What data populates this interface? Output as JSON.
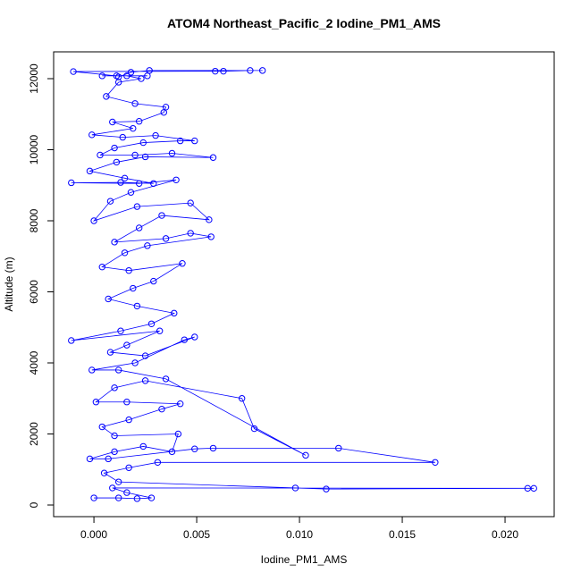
{
  "chart_data": {
    "type": "line",
    "title": "ATOM4 Northeast_Pacific_2 Iodine_PM1_AMS",
    "x_label": "Iodine_PM1_AMS",
    "y_label": "Altitude (m)",
    "color": "#0000ff",
    "markers": "open-circle",
    "xlim": [
      -0.00196,
      0.02239
    ],
    "ylim": [
      -327,
      12755
    ],
    "xticks": [
      {
        "value": 0,
        "label": "0.000"
      },
      {
        "value": 0.005,
        "label": "0.005"
      },
      {
        "value": 0.01,
        "label": "0.010"
      },
      {
        "value": 0.015,
        "label": "0.015"
      },
      {
        "value": 0.02,
        "label": "0.020"
      }
    ],
    "yticks": [
      0,
      2000,
      4000,
      6000,
      8000,
      10000,
      12000
    ],
    "x": [
      0.0,
      0.0012,
      0.0021,
      0.0028,
      0.0016,
      0.0009,
      0.0214,
      0.0211,
      0.0113,
      0.0098,
      0.0012,
      0.0005,
      0.0017,
      0.0031,
      0.0166,
      0.0119,
      0.0058,
      0.0049,
      0.0007,
      -0.0002,
      0.001,
      0.0024,
      0.0038,
      0.0041,
      0.001,
      0.0004,
      0.0017,
      0.0033,
      0.0042,
      0.0016,
      0.0001,
      0.001,
      0.0025,
      0.0072,
      0.0078,
      0.0103,
      0.0035,
      0.0012,
      -0.0001,
      0.002,
      0.0044,
      0.0049,
      0.0025,
      0.0008,
      0.0016,
      0.0032,
      -0.0011,
      0.0013,
      0.0028,
      0.0039,
      0.0021,
      0.0007,
      0.0019,
      0.0029,
      0.0043,
      0.0017,
      0.0004,
      0.0015,
      0.0026,
      0.0057,
      0.0047,
      0.0035,
      0.001,
      0.0022,
      0.0033,
      0.0056,
      0.0047,
      0.0021,
      0.0,
      0.0008,
      0.0018,
      0.004,
      0.0022,
      -0.0011,
      0.0013,
      0.0029,
      0.0015,
      -0.0002,
      0.0011,
      0.0025,
      0.0058,
      0.0038,
      0.002,
      0.0003,
      0.001,
      0.0024,
      0.0042,
      0.0049,
      0.003,
      0.0014,
      -0.0001,
      0.0019,
      0.0009,
      0.0022,
      0.0034,
      0.0035,
      0.002,
      0.0006,
      0.0012,
      0.0023,
      0.0016,
      0.0004,
      0.0026,
      0.0011,
      -0.001,
      0.0059,
      0.0063,
      0.0076,
      0.0082,
      0.0027,
      0.0018,
      0.0012
    ],
    "values": [
      200,
      200,
      180,
      200,
      350,
      480,
      470,
      470,
      450,
      480,
      650,
      900,
      1050,
      1200,
      1200,
      1600,
      1600,
      1580,
      1300,
      1300,
      1500,
      1650,
      1500,
      2000,
      1950,
      2200,
      2400,
      2700,
      2850,
      2900,
      2900,
      3300,
      3500,
      3000,
      2150,
      1400,
      3550,
      3800,
      3800,
      4000,
      4650,
      4730,
      4200,
      4300,
      4500,
      4900,
      4630,
      4900,
      5100,
      5400,
      5600,
      5800,
      6100,
      6300,
      6800,
      6600,
      6700,
      7100,
      7300,
      7550,
      7650,
      7500,
      7400,
      7800,
      8150,
      8030,
      8500,
      8400,
      8000,
      8550,
      8800,
      9150,
      9050,
      9070,
      9080,
      9050,
      9200,
      9400,
      9650,
      9800,
      9780,
      9900,
      9850,
      9850,
      10050,
      10200,
      10250,
      10250,
      10400,
      10350,
      10420,
      10600,
      10780,
      10800,
      11050,
      11200,
      11300,
      11500,
      11900,
      12000,
      12080,
      12080,
      12080,
      12080,
      12200,
      12210,
      12210,
      12230,
      12230,
      12230,
      12180,
      12050
    ]
  }
}
